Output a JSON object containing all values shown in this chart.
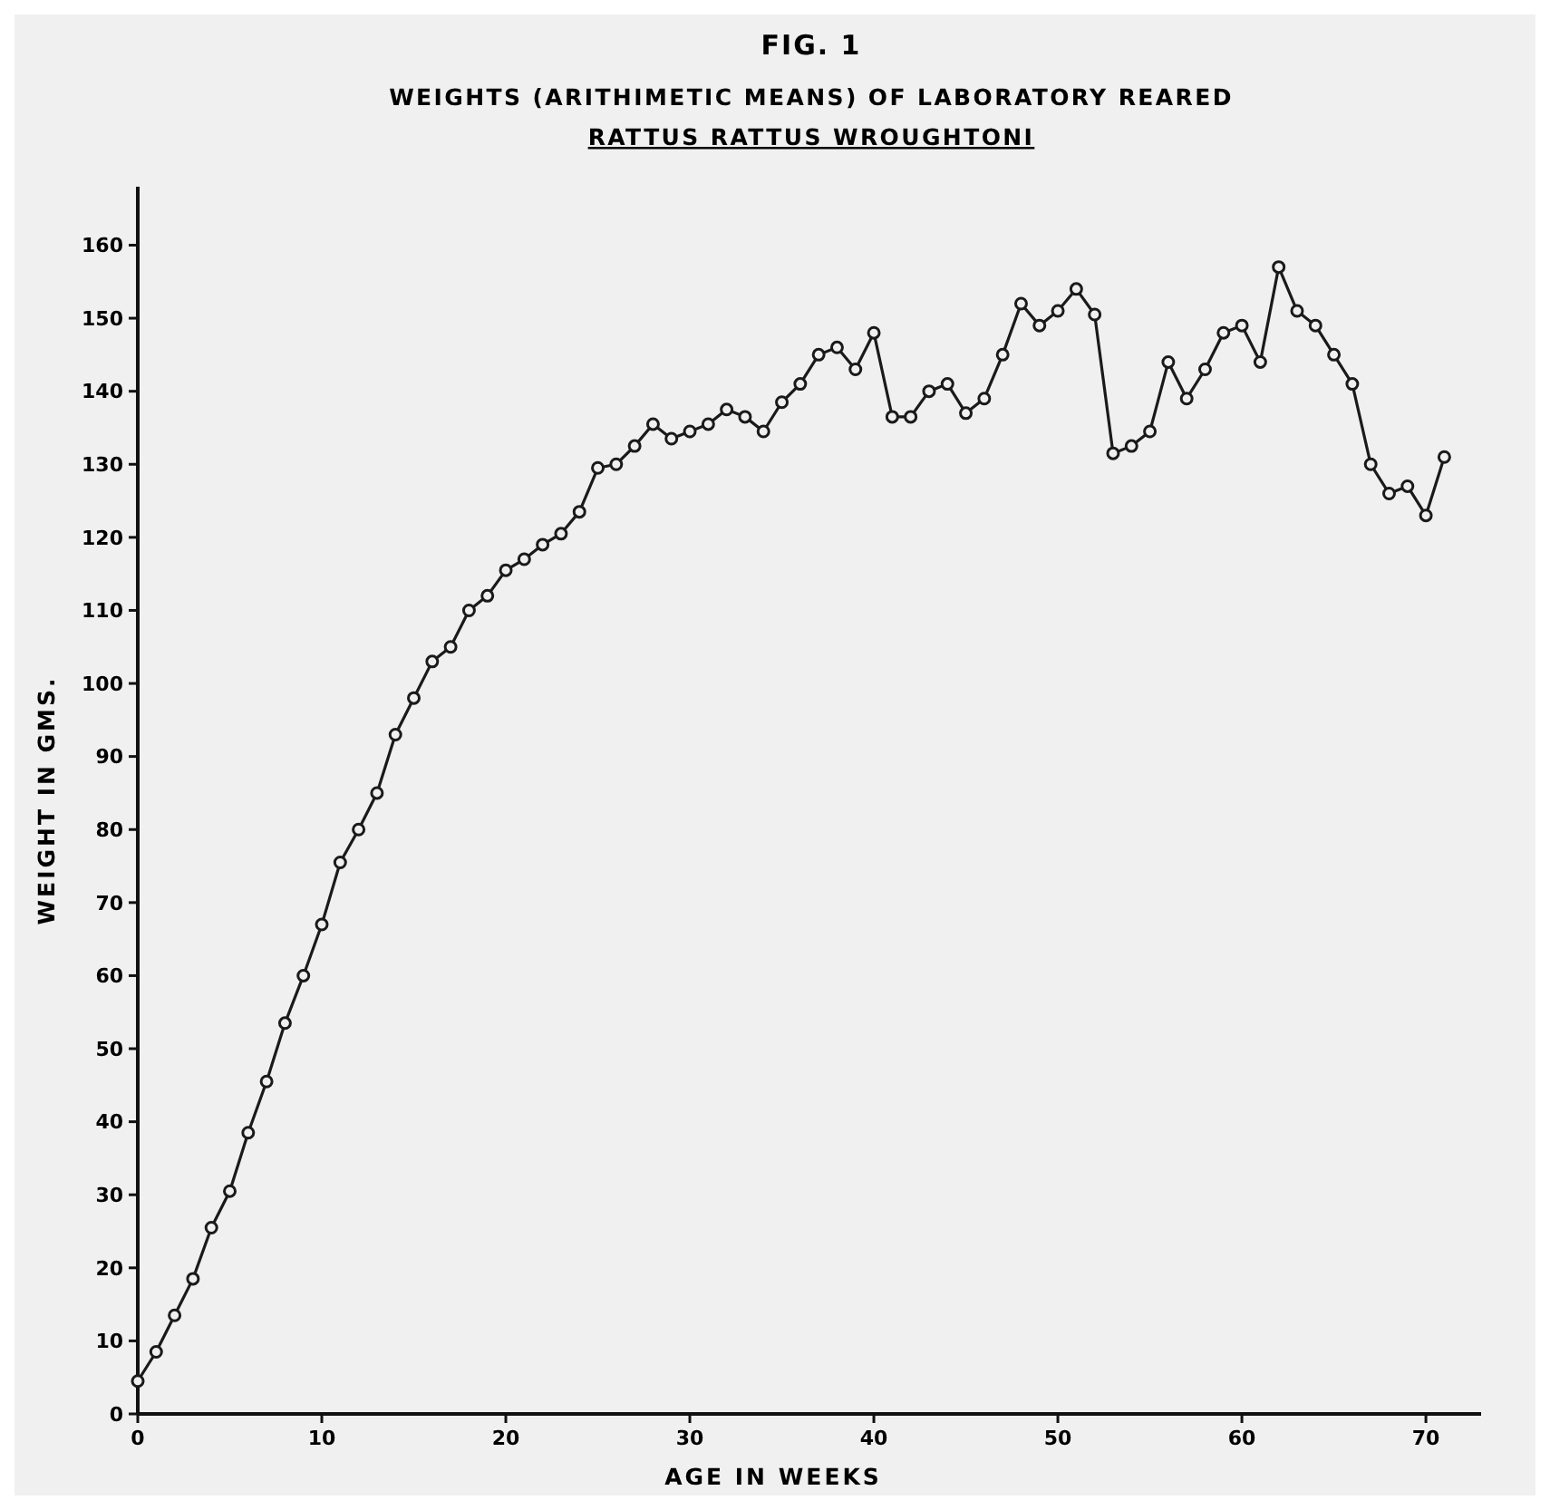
{
  "chart_data": {
    "type": "line",
    "title": "FIG. 1",
    "subtitle": "WEIGHTS (ARITHIMETIC MEANS) OF LABORATORY REARED RATTUS RATTUS WROUGHTONI",
    "xlabel": "AGE IN WEEKS",
    "ylabel": "WEIGHT IN GMS.",
    "x": [
      0,
      1,
      2,
      3,
      4,
      5,
      6,
      7,
      8,
      9,
      10,
      11,
      12,
      13,
      14,
      15,
      16,
      17,
      18,
      19,
      20,
      21,
      22,
      23,
      24,
      25,
      26,
      27,
      28,
      29,
      30,
      31,
      32,
      33,
      34,
      35,
      36,
      37,
      38,
      39,
      40,
      41,
      42,
      43,
      44,
      45,
      46,
      47,
      48,
      49,
      50,
      51,
      52,
      53,
      54,
      55,
      56,
      57,
      58,
      59,
      60,
      61,
      62,
      63,
      64,
      65,
      66,
      67,
      68,
      69,
      70,
      71
    ],
    "values": [
      4.5,
      8.5,
      13.5,
      18.5,
      25.5,
      30.5,
      38.5,
      45.5,
      53.5,
      60,
      67,
      75.5,
      80,
      85,
      93,
      98,
      103,
      105,
      110,
      112,
      115.5,
      117,
      119,
      120.5,
      123.5,
      129.5,
      130,
      132.5,
      135.5,
      133.5,
      134.5,
      135.5,
      137.5,
      136.5,
      134.5,
      138.5,
      141,
      145,
      146,
      143,
      148,
      136.5,
      136.5,
      140,
      141,
      137,
      139,
      145,
      152,
      149,
      151,
      154,
      150.5,
      131.5,
      132.5,
      134.5,
      144,
      139,
      143,
      148,
      149,
      144,
      157,
      151,
      149,
      145,
      141,
      130,
      126,
      127,
      123,
      131
    ],
    "color": "#1a1a1a",
    "marker": "circle",
    "line_style": "solid",
    "grid": false,
    "xlim": [
      0,
      73
    ],
    "xticks": [
      0,
      10,
      20,
      30,
      40,
      50,
      60,
      70
    ],
    "ylim": [
      0,
      168
    ],
    "yticks": [
      0,
      10,
      20,
      30,
      40,
      50,
      60,
      70,
      80,
      90,
      100,
      110,
      120,
      130,
      140,
      150,
      160
    ]
  }
}
